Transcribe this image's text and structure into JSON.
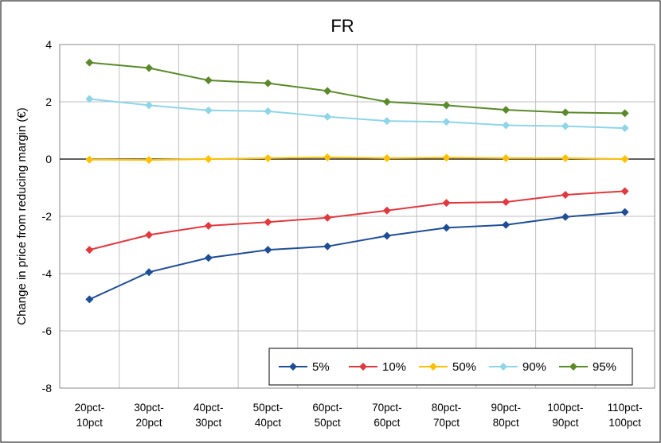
{
  "chart_data": {
    "type": "line",
    "title": "FR",
    "ylabel": "Change in price from reducing margin (€)",
    "xlabel": "",
    "categories": [
      [
        "20pct-",
        "10pct"
      ],
      [
        "30pct-",
        "20pct"
      ],
      [
        "40pct-",
        "30pct"
      ],
      [
        "50pct-",
        "40pct"
      ],
      [
        "60pct-",
        "50pct"
      ],
      [
        "70pct-",
        "60pct"
      ],
      [
        "80pct-",
        "70pct"
      ],
      [
        "90pct-",
        "80pct"
      ],
      [
        "100pct-",
        "90pct"
      ],
      [
        "110pct-",
        "100pct"
      ]
    ],
    "ylim": [
      -8,
      4
    ],
    "yticks": [
      4,
      2,
      0,
      -2,
      -4,
      -6,
      -8
    ],
    "grid": true,
    "legend_position": "bottom-right",
    "series": [
      {
        "name": "5%",
        "color": "#1f4e96",
        "values": [
          -4.9,
          -3.95,
          -3.45,
          -3.17,
          -3.05,
          -2.68,
          -2.4,
          -2.3,
          -2.02,
          -1.85
        ]
      },
      {
        "name": "10%",
        "color": "#e0393e",
        "values": [
          -3.17,
          -2.65,
          -2.33,
          -2.2,
          -2.05,
          -1.8,
          -1.53,
          -1.5,
          -1.25,
          -1.12
        ]
      },
      {
        "name": "50%",
        "color": "#ffc000",
        "values": [
          -0.02,
          -0.03,
          0.0,
          0.03,
          0.06,
          0.03,
          0.05,
          0.03,
          0.03,
          0.0
        ]
      },
      {
        "name": "90%",
        "color": "#8fd5e8",
        "values": [
          2.1,
          1.88,
          1.7,
          1.67,
          1.48,
          1.33,
          1.3,
          1.18,
          1.15,
          1.08
        ]
      },
      {
        "name": "95%",
        "color": "#5a8a2a",
        "values": [
          3.37,
          3.18,
          2.75,
          2.65,
          2.38,
          2.0,
          1.88,
          1.72,
          1.63,
          1.6
        ]
      }
    ]
  }
}
